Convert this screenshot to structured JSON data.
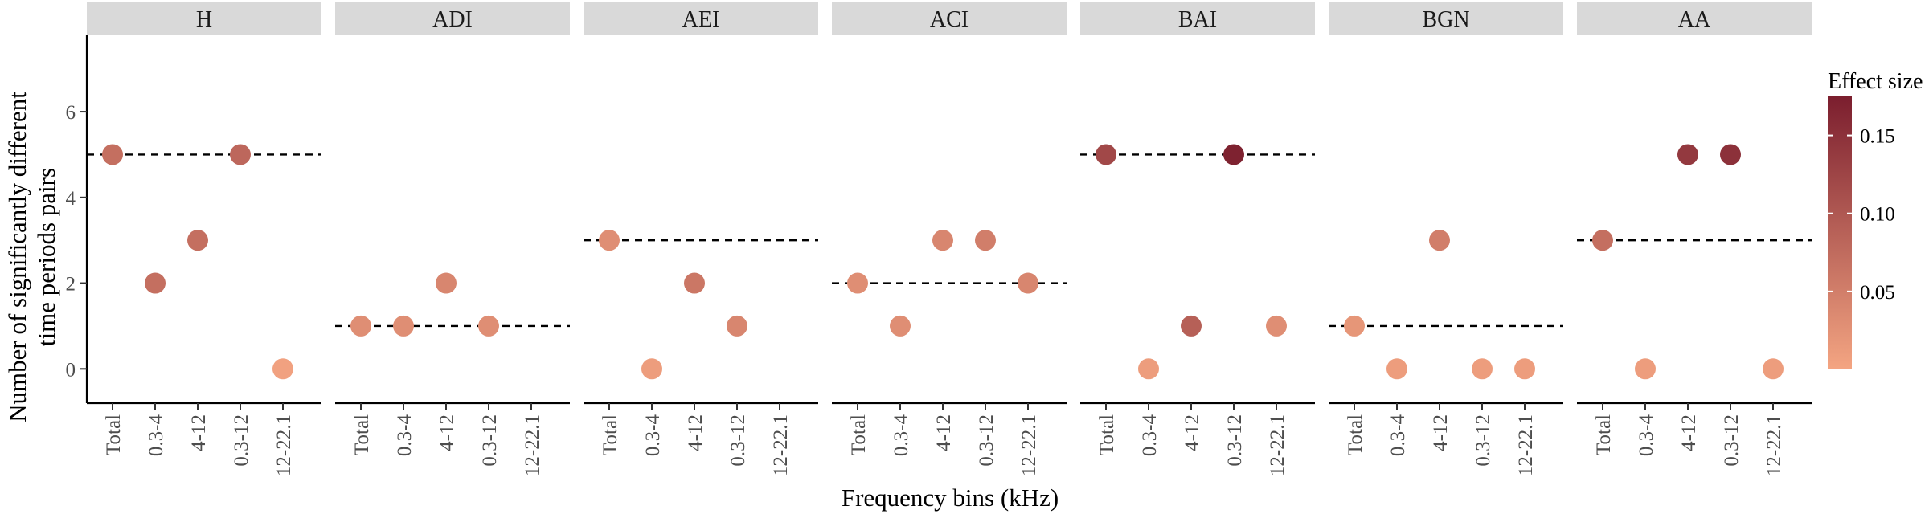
{
  "chart_data": {
    "type": "scatter",
    "xlabel": "Frequency bins (kHz)",
    "ylabel": [
      "Number of significantly different",
      "time periods pairs"
    ],
    "ylim": [
      -0.8,
      7.8
    ],
    "y_ticks": [
      0,
      2,
      4,
      6
    ],
    "categories": [
      "Total",
      "0.3-4",
      "4-12",
      "0.3-12",
      "12-22.1"
    ],
    "grid": false,
    "legend": {
      "title": "Effect size",
      "placement": "right",
      "type": "colorbar",
      "range": [
        0.0,
        0.175
      ],
      "ticks": [
        0.05,
        0.1,
        0.15
      ],
      "tick_labels": [
        "0.05",
        "0.10",
        "0.15"
      ],
      "color_low": "#f4a582",
      "color_high": "#7b1e2e"
    },
    "panels": [
      {
        "name": "H",
        "reference_line": 5,
        "points": [
          {
            "x": "Total",
            "y": 5,
            "effect": 0.07
          },
          {
            "x": "0.3-4",
            "y": 2,
            "effect": 0.07
          },
          {
            "x": "4-12",
            "y": 3,
            "effect": 0.07
          },
          {
            "x": "0.3-12",
            "y": 5,
            "effect": 0.08
          },
          {
            "x": "12-22.1",
            "y": 0,
            "effect": 0.005
          }
        ]
      },
      {
        "name": "ADI",
        "reference_line": 1,
        "points": [
          {
            "x": "Total",
            "y": 1,
            "effect": 0.03
          },
          {
            "x": "0.3-4",
            "y": 1,
            "effect": 0.03
          },
          {
            "x": "4-12",
            "y": 2,
            "effect": 0.04
          },
          {
            "x": "0.3-12",
            "y": 1,
            "effect": 0.03
          }
        ]
      },
      {
        "name": "AEI",
        "reference_line": 3,
        "points": [
          {
            "x": "Total",
            "y": 3,
            "effect": 0.03
          },
          {
            "x": "0.3-4",
            "y": 0,
            "effect": 0.01
          },
          {
            "x": "4-12",
            "y": 2,
            "effect": 0.06
          },
          {
            "x": "0.3-12",
            "y": 1,
            "effect": 0.04
          }
        ]
      },
      {
        "name": "ACI",
        "reference_line": 2,
        "points": [
          {
            "x": "Total",
            "y": 2,
            "effect": 0.03
          },
          {
            "x": "0.3-4",
            "y": 1,
            "effect": 0.03
          },
          {
            "x": "4-12",
            "y": 3,
            "effect": 0.04
          },
          {
            "x": "0.3-12",
            "y": 3,
            "effect": 0.05
          },
          {
            "x": "12-22.1",
            "y": 2,
            "effect": 0.04
          }
        ]
      },
      {
        "name": "BAI",
        "reference_line": 5,
        "points": [
          {
            "x": "Total",
            "y": 5,
            "effect": 0.12
          },
          {
            "x": "0.3-4",
            "y": 0,
            "effect": 0.01
          },
          {
            "x": "4-12",
            "y": 1,
            "effect": 0.09
          },
          {
            "x": "0.3-12",
            "y": 5,
            "effect": 0.17
          },
          {
            "x": "12-22.1",
            "y": 1,
            "effect": 0.03
          }
        ]
      },
      {
        "name": "BGN",
        "reference_line": 1,
        "points": [
          {
            "x": "Total",
            "y": 1,
            "effect": 0.02
          },
          {
            "x": "0.3-4",
            "y": 0,
            "effect": 0.01
          },
          {
            "x": "4-12",
            "y": 3,
            "effect": 0.05
          },
          {
            "x": "0.3-12",
            "y": 0,
            "effect": 0.01
          },
          {
            "x": "12-22.1",
            "y": 0,
            "effect": 0.01
          }
        ]
      },
      {
        "name": "AA",
        "reference_line": 3,
        "points": [
          {
            "x": "Total",
            "y": 3,
            "effect": 0.07
          },
          {
            "x": "0.3-4",
            "y": 0,
            "effect": 0.01
          },
          {
            "x": "4-12",
            "y": 5,
            "effect": 0.14
          },
          {
            "x": "0.3-12",
            "y": 5,
            "effect": 0.15
          },
          {
            "x": "12-22.1",
            "y": 0,
            "effect": 0.01
          }
        ]
      }
    ]
  }
}
